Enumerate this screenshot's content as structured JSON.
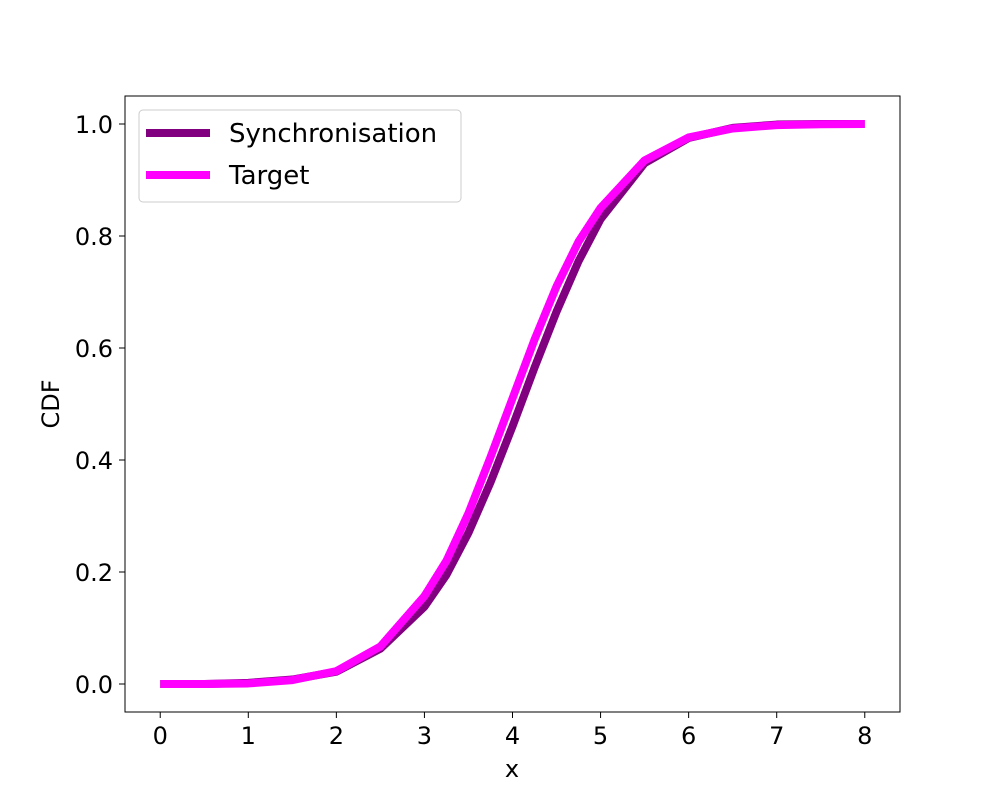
{
  "chart_data": {
    "type": "line",
    "xlabel": "x",
    "ylabel": "CDF",
    "xlim": [
      -0.4,
      8.4
    ],
    "ylim": [
      -0.05,
      1.05
    ],
    "x_ticks": [
      0,
      1,
      2,
      3,
      4,
      5,
      6,
      7,
      8
    ],
    "x_tick_labels": [
      "0",
      "1",
      "2",
      "3",
      "4",
      "5",
      "6",
      "7",
      "8"
    ],
    "y_ticks": [
      0.0,
      0.2,
      0.4,
      0.6,
      0.8,
      1.0
    ],
    "y_tick_labels": [
      "0.0",
      "0.2",
      "0.4",
      "0.6",
      "0.8",
      "1.0"
    ],
    "grid": false,
    "legend_position": "top-left",
    "x": [
      0,
      0.5,
      1,
      1.5,
      2,
      2.5,
      3,
      3.25,
      3.5,
      3.75,
      4,
      4.25,
      4.5,
      4.75,
      5,
      5.5,
      6,
      6.5,
      7,
      7.5,
      8
    ],
    "series": [
      {
        "name": "Synchronisation",
        "color": "#800080",
        "values": [
          0.0,
          0.0,
          0.002,
          0.008,
          0.022,
          0.063,
          0.138,
          0.195,
          0.27,
          0.36,
          0.46,
          0.565,
          0.665,
          0.755,
          0.83,
          0.93,
          0.975,
          0.993,
          0.999,
          1.0,
          1.0
        ]
      },
      {
        "name": "Target",
        "color": "#ff00ff",
        "values": [
          0.0,
          0.0,
          0.001,
          0.007,
          0.023,
          0.067,
          0.157,
          0.22,
          0.305,
          0.405,
          0.51,
          0.615,
          0.71,
          0.79,
          0.85,
          0.935,
          0.976,
          0.992,
          0.998,
          0.9995,
          1.0
        ]
      }
    ]
  }
}
